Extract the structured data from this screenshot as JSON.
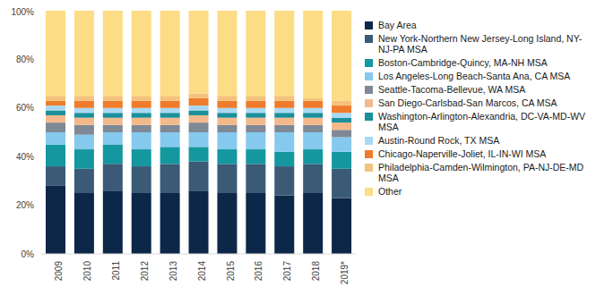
{
  "chart_data": {
    "type": "bar",
    "stacked": true,
    "legend": "right",
    "grid": false,
    "categories": [
      "2009",
      "2010",
      "2011",
      "2012",
      "2013",
      "2014",
      "2015",
      "2016",
      "2017",
      "2018",
      "2019*"
    ],
    "ylim": [
      0,
      100
    ],
    "yticks": [
      {
        "value": 0,
        "label": "0%"
      },
      {
        "value": 20,
        "label": "20%"
      },
      {
        "value": 40,
        "label": "40%"
      },
      {
        "value": 60,
        "label": "60%"
      },
      {
        "value": 80,
        "label": "80%"
      },
      {
        "value": 100,
        "label": "100%"
      }
    ],
    "series": [
      {
        "name": "Bay Area",
        "color": "#0c2748",
        "values": [
          28,
          25,
          26,
          25,
          25,
          26,
          25,
          25,
          24,
          25,
          23
        ]
      },
      {
        "name": "New York-Northern New Jersey-Long Island, NY-NJ-PA MSA",
        "color": "#3a5a76",
        "values": [
          8,
          10,
          11,
          11,
          12,
          12,
          12,
          12,
          12,
          12,
          12
        ]
      },
      {
        "name": "Boston-Cambridge-Quincy, MA-NH MSA",
        "color": "#14979f",
        "values": [
          9,
          8,
          8,
          7,
          7,
          6,
          6,
          6,
          6,
          6,
          7
        ]
      },
      {
        "name": "Los Angeles-Long Beach-Santa Ana, CA MSA",
        "color": "#86c9ee",
        "values": [
          5,
          6,
          5,
          7,
          6,
          6,
          7,
          7,
          8,
          7,
          6
        ]
      },
      {
        "name": "Seattle-Tacoma-Bellevue, WA MSA",
        "color": "#7f8996",
        "values": [
          4,
          4,
          3,
          3,
          3,
          4,
          3,
          3,
          3,
          3,
          3
        ]
      },
      {
        "name": "San Diego-Carlsbad-San Marcos, CA MSA",
        "color": "#f4b98b",
        "values": [
          3,
          3,
          3,
          3,
          3,
          3,
          3,
          3,
          3,
          3,
          3
        ]
      },
      {
        "name": "Washington-Arlington-Alexandria, DC-VA-MD-WV MSA",
        "color": "#1b8f9a",
        "values": [
          2,
          2,
          2,
          2,
          2,
          2,
          2,
          2,
          2,
          2,
          2
        ]
      },
      {
        "name": "Austin-Round Rock, TX MSA",
        "color": "#a9d9f4",
        "values": [
          2,
          2,
          2,
          2,
          2,
          2,
          2,
          2,
          2,
          2,
          2
        ]
      },
      {
        "name": "Chicago-Naperville-Joliet, IL-IN-WI MSA",
        "color": "#ef7c2c",
        "values": [
          2,
          3,
          3,
          3,
          3,
          3,
          3,
          3,
          3,
          3,
          3
        ]
      },
      {
        "name": "Philadelphia-Camden-Wilmington, PA-NJ-DE-MD MSA",
        "color": "#f5c27c",
        "values": [
          2,
          2,
          2,
          2,
          2,
          2,
          2,
          2,
          2,
          1,
          2
        ]
      },
      {
        "name": "Other",
        "color": "#fddc86",
        "values": [
          35,
          35,
          35,
          35,
          35,
          34,
          35,
          35,
          35,
          36,
          37
        ]
      }
    ]
  }
}
